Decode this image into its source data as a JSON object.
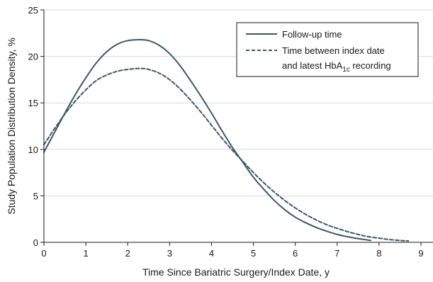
{
  "chart_data": {
    "type": "line",
    "xlabel": "Time Since Bariatric Surgery/Index Date, y",
    "ylabel": "Study Population Distribution Density, %",
    "xlim": [
      0,
      9
    ],
    "ylim": [
      0,
      25
    ],
    "x_ticks": [
      "0",
      "1",
      "2",
      "3",
      "4",
      "5",
      "6",
      "7",
      "8",
      "9"
    ],
    "y_ticks": [
      "0",
      "5",
      "10",
      "15",
      "20",
      "25"
    ],
    "grid": "horizontal",
    "legend": "top-right",
    "series": [
      {
        "name": "Follow-up time",
        "style": "solid",
        "color": "#3b5867",
        "points": [
          [
            0,
            9.7
          ],
          [
            0.25,
            11.8
          ],
          [
            0.5,
            13.9
          ],
          [
            0.75,
            15.9
          ],
          [
            1.0,
            17.7
          ],
          [
            1.25,
            19.3
          ],
          [
            1.5,
            20.5
          ],
          [
            1.75,
            21.3
          ],
          [
            2.0,
            21.7
          ],
          [
            2.3,
            21.8
          ],
          [
            2.5,
            21.7
          ],
          [
            2.75,
            21.2
          ],
          [
            3.0,
            20.3
          ],
          [
            3.25,
            19.0
          ],
          [
            3.5,
            17.4
          ],
          [
            3.75,
            15.7
          ],
          [
            4.0,
            13.9
          ],
          [
            4.25,
            12.0
          ],
          [
            4.5,
            10.2
          ],
          [
            4.75,
            8.6
          ],
          [
            5.0,
            7.0
          ],
          [
            5.25,
            5.7
          ],
          [
            5.5,
            4.5
          ],
          [
            5.75,
            3.5
          ],
          [
            6.0,
            2.7
          ],
          [
            6.25,
            2.1
          ],
          [
            6.5,
            1.6
          ],
          [
            6.75,
            1.2
          ],
          [
            7.0,
            0.85
          ],
          [
            7.25,
            0.6
          ],
          [
            7.5,
            0.4
          ],
          [
            7.8,
            0.2
          ]
        ]
      },
      {
        "name": "Time between index date and latest HbA1c recording",
        "style": "dashed",
        "color": "#3b5867",
        "points": [
          [
            0,
            10.5
          ],
          [
            0.25,
            12.2
          ],
          [
            0.5,
            13.8
          ],
          [
            0.75,
            15.2
          ],
          [
            1.0,
            16.4
          ],
          [
            1.25,
            17.4
          ],
          [
            1.5,
            18.0
          ],
          [
            1.75,
            18.4
          ],
          [
            2.0,
            18.6
          ],
          [
            2.3,
            18.7
          ],
          [
            2.5,
            18.6
          ],
          [
            2.75,
            18.2
          ],
          [
            3.0,
            17.5
          ],
          [
            3.25,
            16.5
          ],
          [
            3.5,
            15.3
          ],
          [
            3.75,
            14.0
          ],
          [
            4.0,
            12.6
          ],
          [
            4.25,
            11.2
          ],
          [
            4.5,
            9.9
          ],
          [
            4.75,
            8.7
          ],
          [
            5.0,
            7.5
          ],
          [
            5.25,
            6.4
          ],
          [
            5.5,
            5.4
          ],
          [
            5.75,
            4.5
          ],
          [
            6.0,
            3.7
          ],
          [
            6.25,
            3.0
          ],
          [
            6.5,
            2.4
          ],
          [
            6.75,
            1.9
          ],
          [
            7.0,
            1.5
          ],
          [
            7.25,
            1.15
          ],
          [
            7.5,
            0.85
          ],
          [
            7.75,
            0.6
          ],
          [
            8.0,
            0.45
          ],
          [
            8.25,
            0.3
          ],
          [
            8.5,
            0.2
          ],
          [
            8.7,
            0.15
          ]
        ]
      }
    ],
    "legend_entries": [
      {
        "line1": "Follow-up time",
        "line2": "",
        "style": "solid"
      },
      {
        "line1": "Time between index date",
        "line2_prefix": "and latest HbA",
        "line2_sub": "1c",
        "line2_suffix": " recording",
        "style": "dashed"
      }
    ]
  }
}
